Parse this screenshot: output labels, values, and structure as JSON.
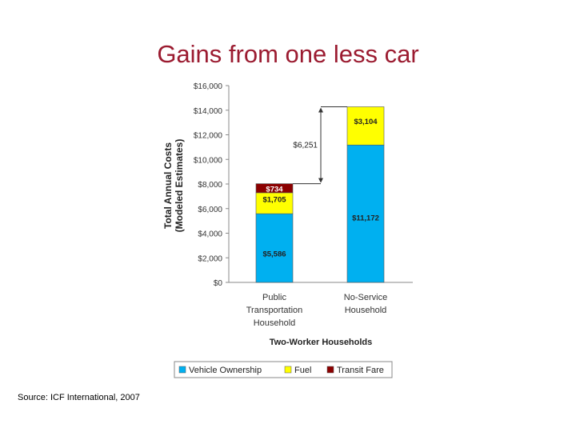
{
  "title": "Gains from one less car",
  "source": "Source: ICF International, 2007",
  "chart_data": {
    "type": "bar",
    "stacked": true,
    "categories": [
      "Public Transportation Household",
      "No-Service Household"
    ],
    "category_lines": [
      [
        "Public",
        "Transportation",
        "Household"
      ],
      [
        "No-Service",
        "Household"
      ]
    ],
    "series": [
      {
        "name": "Vehicle Ownership",
        "color": "#00b0f0",
        "values": [
          5586,
          11172
        ],
        "labels": [
          "$5,586",
          "$11,172"
        ]
      },
      {
        "name": "Fuel",
        "color": "#ffff00",
        "values": [
          1705,
          3104
        ],
        "labels": [
          "$1,705",
          "$3,104"
        ]
      },
      {
        "name": "Transit Fare",
        "color": "#8b0000",
        "values": [
          734,
          0
        ],
        "labels": [
          "$734",
          ""
        ]
      }
    ],
    "ylabel_lines": [
      "Total Annual Costs",
      "(Modeled Estimates)"
    ],
    "xlabel": "Two-Worker Households",
    "ylim": [
      0,
      16000
    ],
    "yticks": [
      0,
      2000,
      4000,
      6000,
      8000,
      10000,
      12000,
      14000,
      16000
    ],
    "ytick_labels": [
      "$0",
      "$2,000",
      "$4,000",
      "$6,000",
      "$8,000",
      "$10,000",
      "$12,000",
      "$14,000",
      "$16,000"
    ],
    "difference_label": "$6,251",
    "legend_position": "bottom",
    "grid": false
  }
}
